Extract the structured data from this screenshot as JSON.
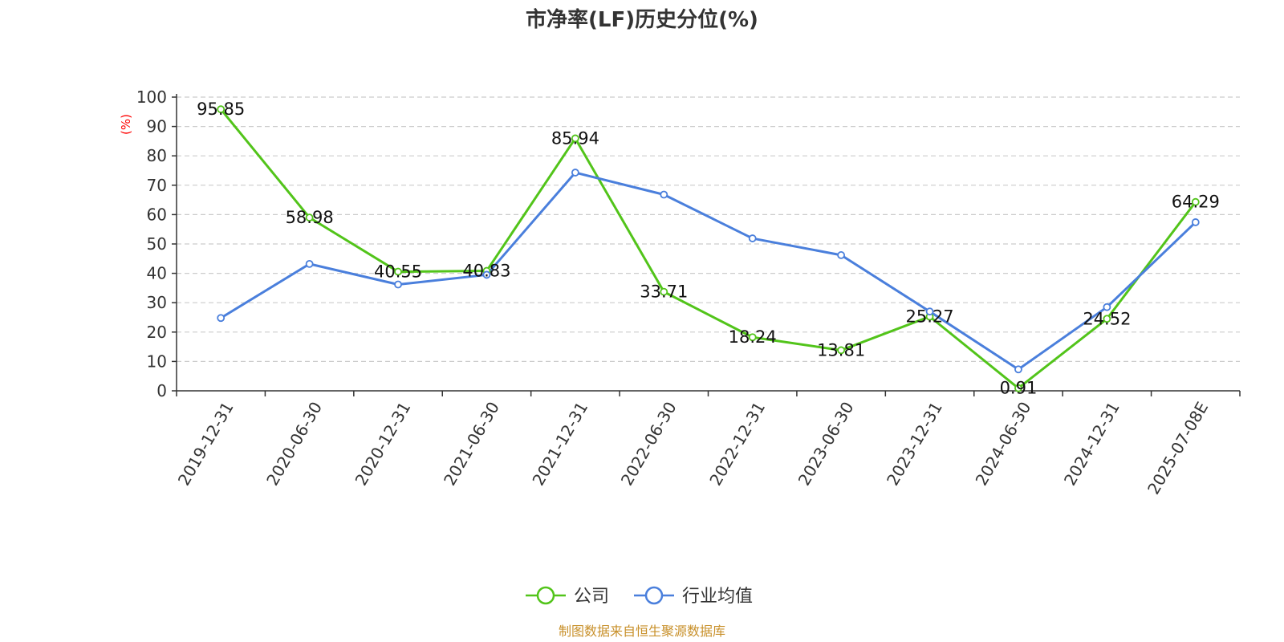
{
  "chart_data": {
    "type": "line",
    "title": "市净率(LF)历史分位(%)",
    "ylabel": "(%)",
    "ylim": [
      0,
      100
    ],
    "yticks": [
      0,
      10,
      20,
      30,
      40,
      50,
      60,
      70,
      80,
      90,
      100
    ],
    "grid": true,
    "categories": [
      "2019-12-31",
      "2020-06-30",
      "2020-12-31",
      "2021-06-30",
      "2021-12-31",
      "2022-06-30",
      "2022-12-31",
      "2023-06-30",
      "2023-12-31",
      "2024-06-30",
      "2024-12-31",
      "2025-07-08E"
    ],
    "series": [
      {
        "name": "公司",
        "color": "#52c41a",
        "values": [
          95.85,
          58.98,
          40.55,
          40.83,
          85.94,
          33.71,
          18.24,
          13.81,
          25.27,
          0.91,
          24.52,
          64.29
        ],
        "data_labels": [
          "95.85",
          "58.98",
          "40.55",
          "40.83",
          "85.94",
          "33.71",
          "18.24",
          "13.81",
          "25.27",
          "0.91",
          "24.52",
          "64.29"
        ]
      },
      {
        "name": "行业均值",
        "color": "#4a7fdc",
        "values": [
          24.8,
          43.2,
          36.2,
          39.5,
          74.3,
          66.8,
          51.9,
          46.2,
          27.0,
          7.3,
          28.5,
          57.4
        ]
      }
    ],
    "legend_position": "bottom-center",
    "source": "制图数据来自恒生聚源数据库"
  }
}
